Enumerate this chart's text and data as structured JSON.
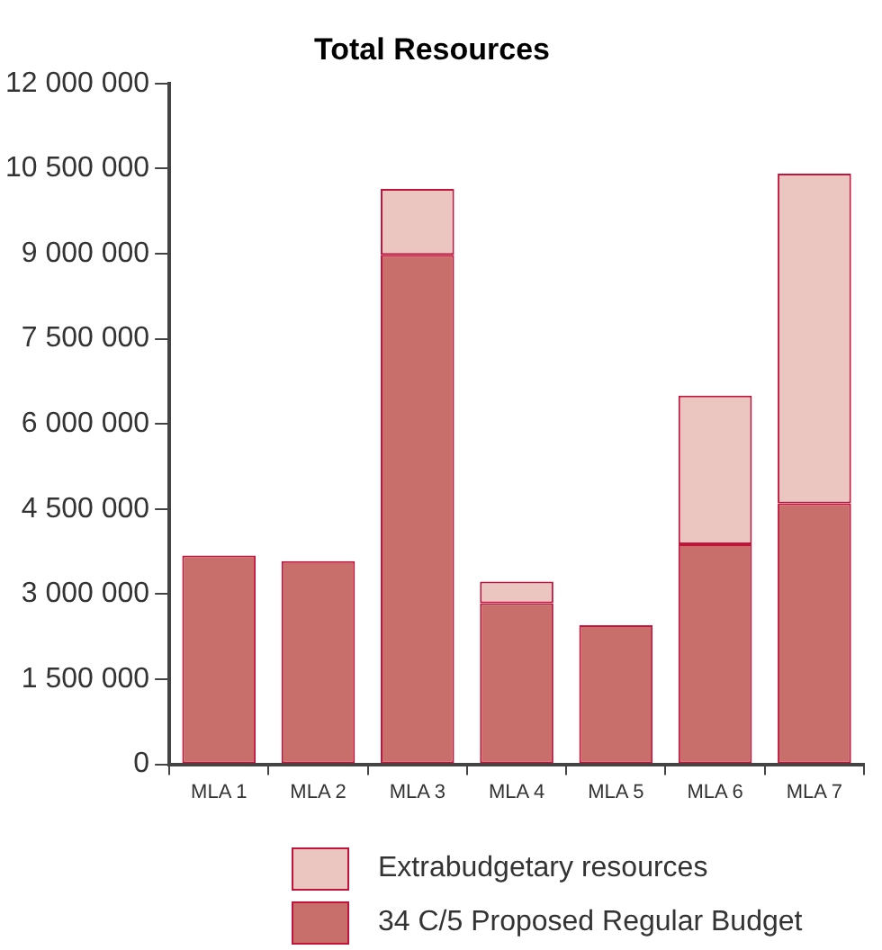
{
  "chart_data": {
    "type": "bar",
    "title": "Total Resources",
    "stacked": true,
    "grid": false,
    "legend": "bottom",
    "categories": [
      "MLA 1",
      "MLA 2",
      "MLA 3",
      "MLA 4",
      "MLA 5",
      "MLA 6",
      "MLA 7"
    ],
    "ylim": [
      0,
      12000000
    ],
    "yticks": [
      {
        "value": 0,
        "label": "0"
      },
      {
        "value": 1500000,
        "label": "1 500 000"
      },
      {
        "value": 3000000,
        "label": "3 000 000"
      },
      {
        "value": 4500000,
        "label": "4 500 000"
      },
      {
        "value": 6000000,
        "label": "6 000 000"
      },
      {
        "value": 7500000,
        "label": "7 500 000"
      },
      {
        "value": 9000000,
        "label": "9 000 000"
      },
      {
        "value": 10500000,
        "label": "10 500 000"
      },
      {
        "value": 12000000,
        "label": "12 000 000"
      }
    ],
    "series": [
      {
        "name": "34 C/5 Proposed Regular Budget",
        "color": "#c86e6b",
        "values": [
          3680000,
          3580000,
          8980000,
          2840000,
          2450000,
          3880000,
          4600000
        ]
      },
      {
        "name": "Extrabudgetary resources",
        "color": "#ebc6c1",
        "values": [
          null,
          null,
          1160000,
          380000,
          null,
          2620000,
          5810000
        ]
      }
    ]
  }
}
